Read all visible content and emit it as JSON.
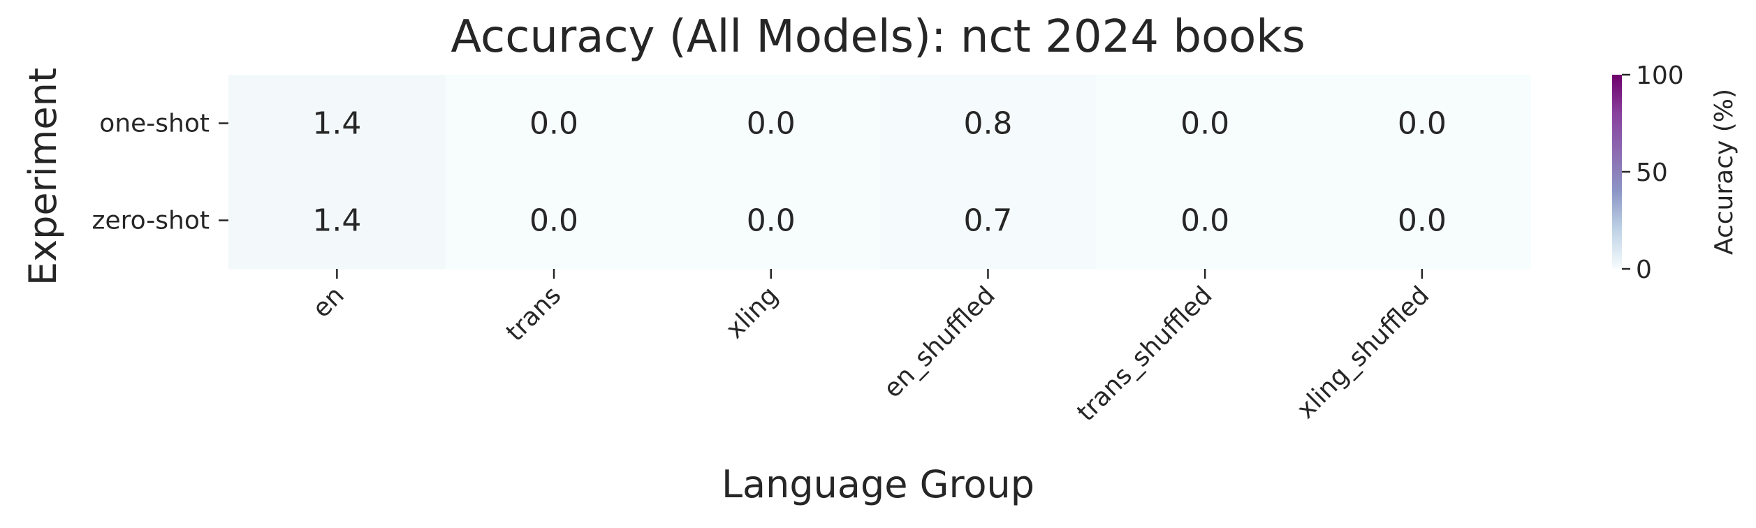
{
  "chart_data": {
    "type": "heatmap",
    "title": "Accuracy (All Models): nct 2024 books",
    "xlabel": "Language Group",
    "ylabel": "Experiment",
    "x_categories": [
      "en",
      "trans",
      "xling",
      "en_shuffled",
      "trans_shuffled",
      "xling_shuffled"
    ],
    "y_categories": [
      "one-shot",
      "zero-shot"
    ],
    "values": [
      [
        1.4,
        0.0,
        0.0,
        0.8,
        0.0,
        0.0
      ],
      [
        1.4,
        0.0,
        0.0,
        0.7,
        0.0,
        0.0
      ]
    ],
    "value_format": "0.0",
    "colorbar": {
      "label": "Accuracy (%)",
      "range": [
        0,
        100
      ],
      "ticks": [
        0,
        50,
        100
      ],
      "colormap": "BuPu",
      "colors": [
        "#f7fcfd",
        "#bfd3e6",
        "#8c96c6",
        "#8c6bb1",
        "#88419d",
        "#6e016b"
      ]
    },
    "grid": false,
    "legend": "colorbar-right"
  }
}
